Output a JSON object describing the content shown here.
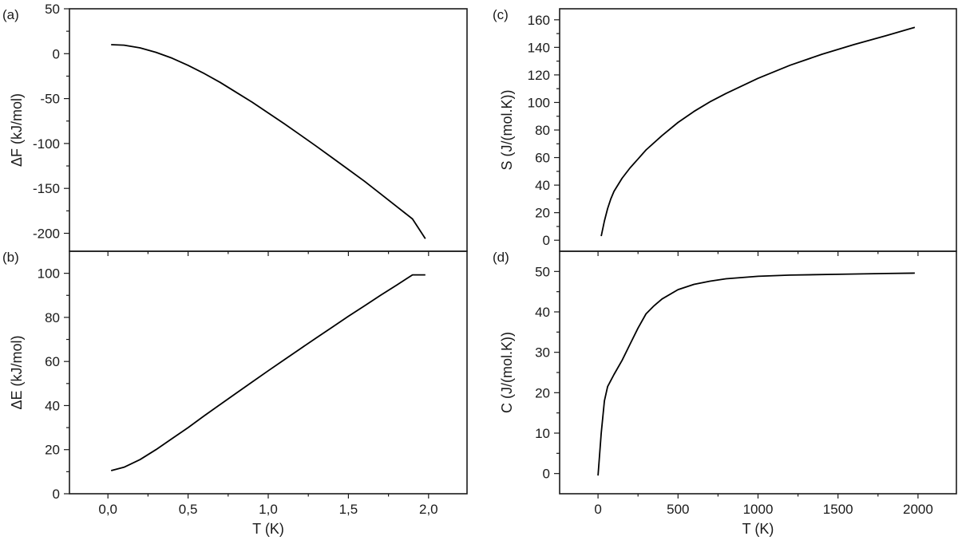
{
  "chart_data": [
    {
      "panel": "(a)",
      "type": "line",
      "xlabel": "",
      "ylabel": "ΔF (kJ/mol)",
      "xlim": [
        -0.24,
        2.24
      ],
      "ylim": [
        -220,
        50
      ],
      "x_ticks": [
        0.0,
        0.5,
        1.0,
        1.5,
        2.0
      ],
      "x_tick_labels": [],
      "y_ticks": [
        50,
        0,
        -50,
        -100,
        -150,
        -200
      ],
      "y_tick_labels": [
        "50",
        "0",
        "-50",
        "-100",
        "-150",
        "-200"
      ],
      "series": [
        {
          "x": [
            0.02,
            0.1,
            0.2,
            0.3,
            0.4,
            0.5,
            0.6,
            0.7,
            0.8,
            0.9,
            1.0,
            1.1,
            1.2,
            1.3,
            1.4,
            1.5,
            1.6,
            1.7,
            1.8,
            1.9,
            1.98
          ],
          "y": [
            10,
            9.5,
            6.5,
            1.5,
            -5,
            -13,
            -22,
            -32,
            -43,
            -54,
            -66,
            -78,
            -90.5,
            -103,
            -116,
            -129,
            -142,
            -156,
            -170,
            -184,
            -206
          ]
        }
      ]
    },
    {
      "panel": "(b)",
      "type": "line",
      "xlabel": "T (K)",
      "ylabel": "ΔE (kJ/mol)",
      "xlim": [
        -0.24,
        2.24
      ],
      "ylim": [
        0,
        110
      ],
      "x_ticks": [
        0.0,
        0.5,
        1.0,
        1.5,
        2.0
      ],
      "x_tick_labels": [
        "0,0",
        "0,5",
        "1,0",
        "1,5",
        "2,0"
      ],
      "y_ticks": [
        0,
        20,
        40,
        60,
        80,
        100
      ],
      "y_tick_labels": [
        "0",
        "20",
        "40",
        "60",
        "80",
        "100"
      ],
      "series": [
        {
          "x": [
            0.02,
            0.1,
            0.2,
            0.3,
            0.4,
            0.5,
            0.6,
            0.7,
            0.8,
            0.9,
            1.0,
            1.1,
            1.2,
            1.3,
            1.4,
            1.5,
            1.6,
            1.7,
            1.8,
            1.9,
            1.98
          ],
          "y": [
            10.5,
            12,
            15.5,
            20,
            25,
            30,
            35.3,
            40.5,
            45.6,
            50.7,
            55.8,
            60.8,
            65.8,
            70.7,
            75.6,
            80.5,
            85.2,
            90,
            94.6,
            99.3,
            99.3
          ]
        }
      ]
    },
    {
      "panel": "(c)",
      "type": "line",
      "xlabel": "",
      "ylabel": "S (J/(mol.K))",
      "xlim": [
        -240,
        2240
      ],
      "ylim": [
        -8,
        168
      ],
      "x_ticks": [
        0,
        500,
        1000,
        1500,
        2000
      ],
      "x_tick_labels": [],
      "y_ticks": [
        0,
        20,
        40,
        60,
        80,
        100,
        120,
        140,
        160
      ],
      "y_tick_labels": [
        "0",
        "20",
        "40",
        "60",
        "80",
        "100",
        "120",
        "140",
        "160"
      ],
      "series": [
        {
          "x": [
            20,
            40,
            60,
            80,
            100,
            150,
            200,
            250,
            300,
            400,
            500,
            600,
            700,
            800,
            1000,
            1200,
            1400,
            1600,
            1800,
            1980
          ],
          "y": [
            3,
            14,
            23,
            30,
            35.5,
            45,
            52.5,
            59,
            65.5,
            76,
            85.5,
            93.5,
            100.5,
            106.5,
            117.5,
            127,
            135,
            142,
            148.5,
            154.5
          ]
        }
      ]
    },
    {
      "panel": "(d)",
      "type": "line",
      "xlabel": "T (K)",
      "ylabel": "C (J/(mol.K))",
      "xlim": [
        -240,
        2240
      ],
      "ylim": [
        -5,
        55
      ],
      "x_ticks": [
        0,
        500,
        1000,
        1500,
        2000
      ],
      "x_tick_labels": [
        "0",
        "500",
        "1000",
        "1500",
        "2000"
      ],
      "y_ticks": [
        0,
        10,
        20,
        30,
        40,
        50
      ],
      "y_tick_labels": [
        "0",
        "10",
        "20",
        "30",
        "40",
        "50"
      ],
      "series": [
        {
          "x": [
            0,
            20,
            40,
            60,
            80,
            100,
            150,
            200,
            250,
            300,
            350,
            400,
            500,
            600,
            700,
            800,
            1000,
            1200,
            1500,
            1800,
            1980
          ],
          "y": [
            -0.5,
            10,
            18,
            21.5,
            23,
            24.5,
            28,
            32,
            36,
            39.5,
            41.5,
            43.2,
            45.5,
            46.8,
            47.6,
            48.2,
            48.8,
            49.1,
            49.3,
            49.5,
            49.6
          ]
        }
      ]
    }
  ]
}
